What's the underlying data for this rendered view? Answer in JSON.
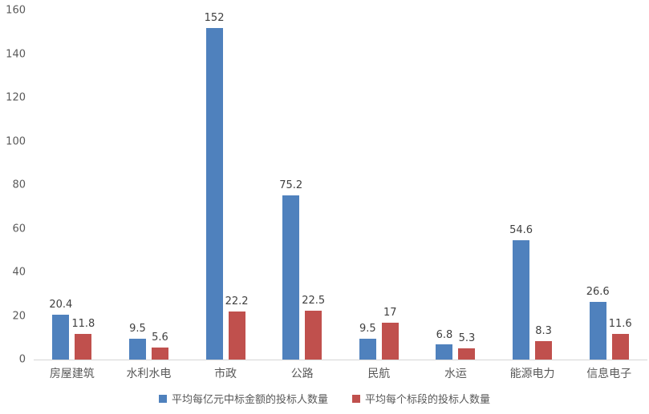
{
  "chart_data": {
    "type": "bar",
    "title": "",
    "xlabel": "",
    "ylabel": "",
    "categories": [
      "房屋建筑",
      "水利水电",
      "市政",
      "公路",
      "民航",
      "水运",
      "能源电力",
      "信息电子"
    ],
    "series": [
      {
        "name": "平均每亿元中标金额的投标人数量",
        "color": "#4F81BD",
        "values": [
          20.4,
          9.5,
          152,
          75.2,
          9.5,
          6.8,
          54.6,
          26.6
        ]
      },
      {
        "name": "平均每个标段的投标人数量",
        "color": "#C0504D",
        "values": [
          11.8,
          5.6,
          22.2,
          22.5,
          17,
          5.3,
          8.3,
          11.6
        ]
      }
    ],
    "ylim": [
      0,
      160
    ],
    "yticks": [
      0,
      20,
      40,
      60,
      80,
      100,
      120,
      140,
      160
    ],
    "grid": false,
    "legend_position": "bottom",
    "background": "#ffffff",
    "axis_line_color": "#d6d6d6",
    "tick_label_color": "#595959",
    "data_label_color": "#404040"
  }
}
